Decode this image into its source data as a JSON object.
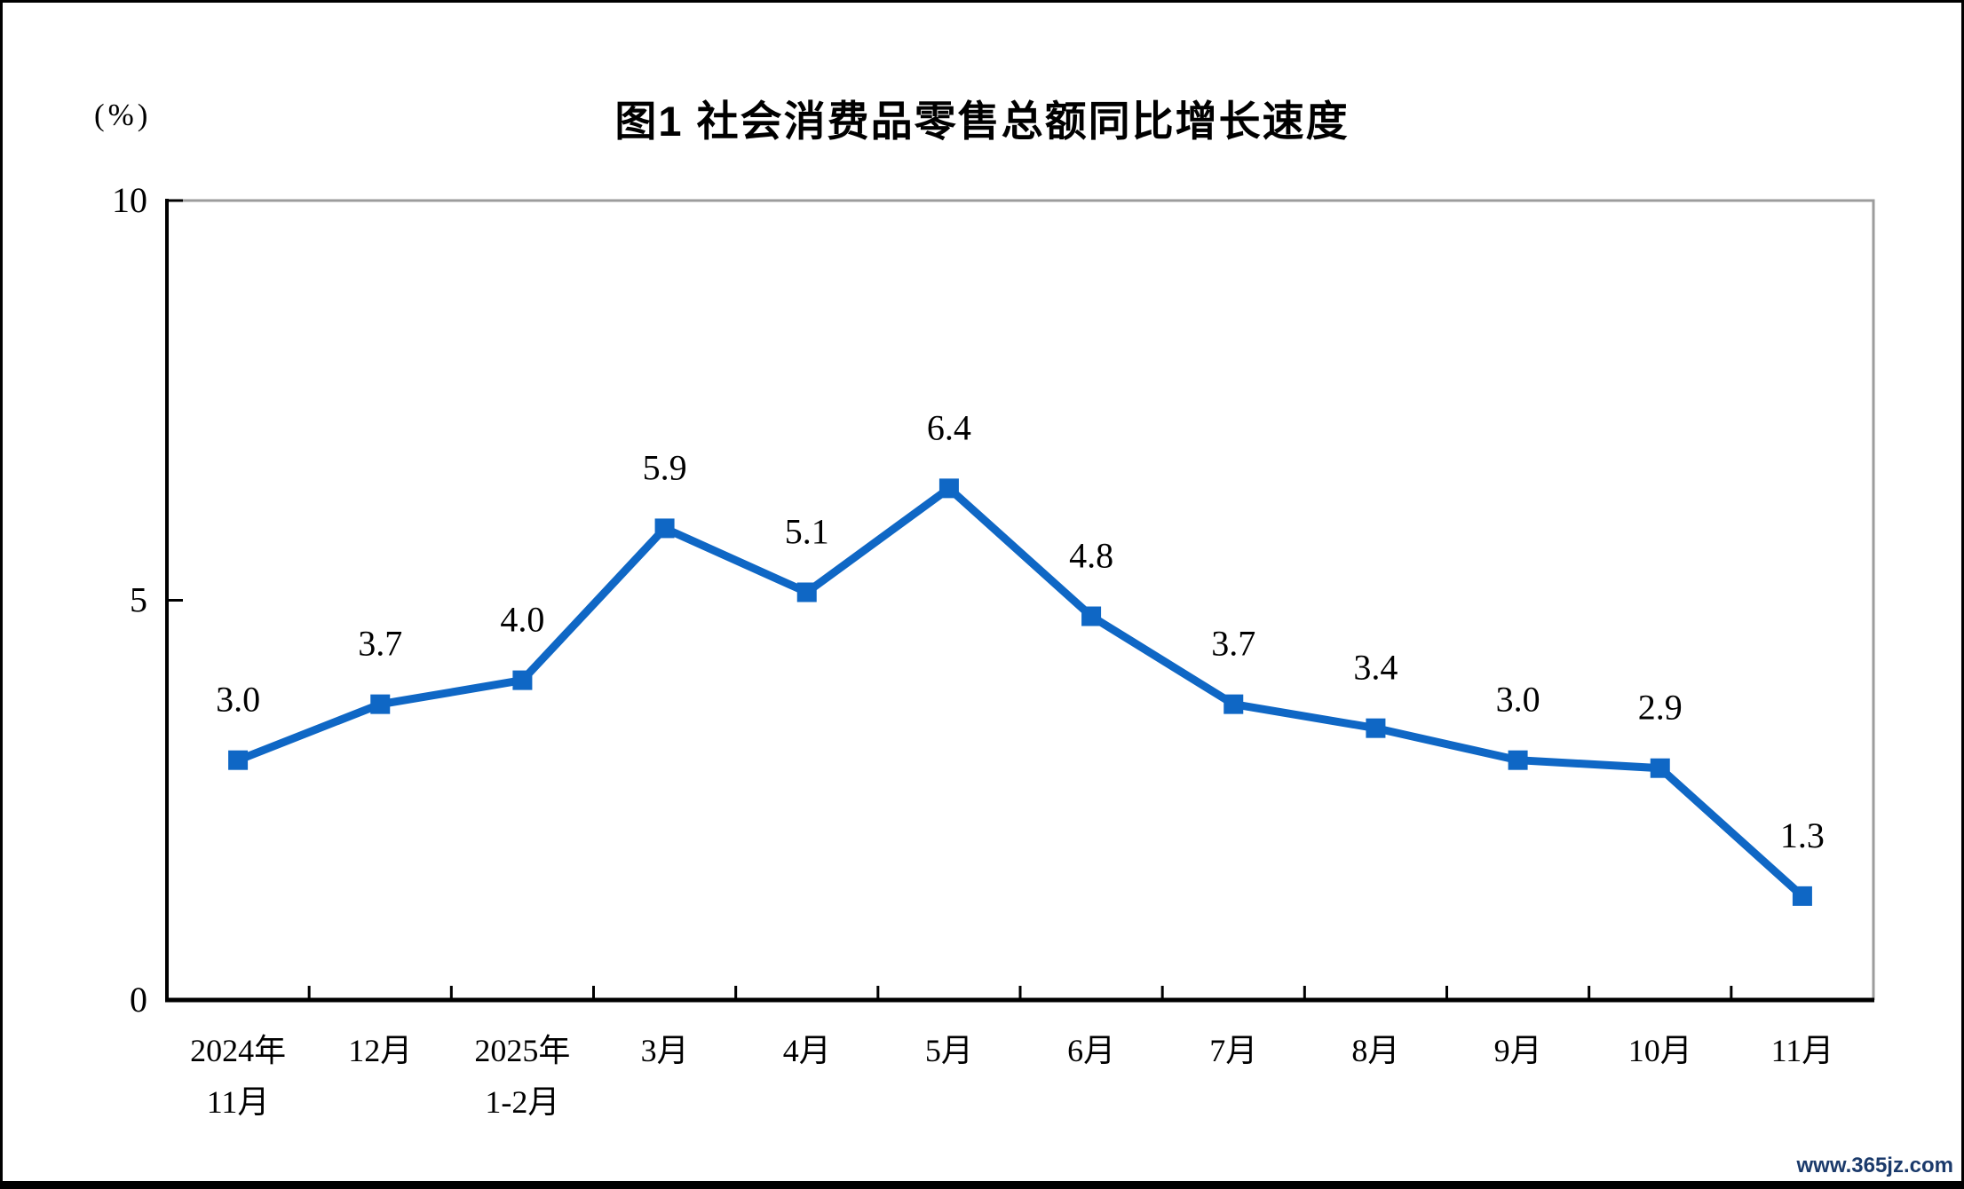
{
  "page": {
    "watermark": "www.365jz.com"
  },
  "colors": {
    "line": "#0f67c5",
    "marker": "#0f67c5",
    "axis": "#000000",
    "plot_border_gray": "#9c9c9c",
    "label_text": "#000000",
    "watermark_text": "#1b3a6b",
    "frame": "#000000"
  },
  "chart_data": {
    "type": "line",
    "title": "图1  社会消费品零售总额同比增长速度",
    "ylabel": "(%)",
    "xlabel": "",
    "categories": [
      [
        "2024年",
        "11月"
      ],
      [
        "12月"
      ],
      [
        "2025年",
        "1-2月"
      ],
      [
        "3月"
      ],
      [
        "4月"
      ],
      [
        "5月"
      ],
      [
        "6月"
      ],
      [
        "7月"
      ],
      [
        "8月"
      ],
      [
        "9月"
      ],
      [
        "10月"
      ],
      [
        "11月"
      ]
    ],
    "values": [
      3.0,
      3.7,
      4.0,
      5.9,
      5.1,
      6.4,
      4.8,
      3.7,
      3.4,
      3.0,
      2.9,
      1.3
    ],
    "data_labels": [
      "3.0",
      "3.7",
      "4.0",
      "5.9",
      "5.1",
      "6.4",
      "4.8",
      "3.7",
      "3.4",
      "3.0",
      "2.9",
      "1.3"
    ],
    "y_ticks": [
      "0",
      "5",
      "10"
    ],
    "ylim": [
      0,
      10
    ],
    "grid": false,
    "legend": false,
    "marker": "square"
  }
}
